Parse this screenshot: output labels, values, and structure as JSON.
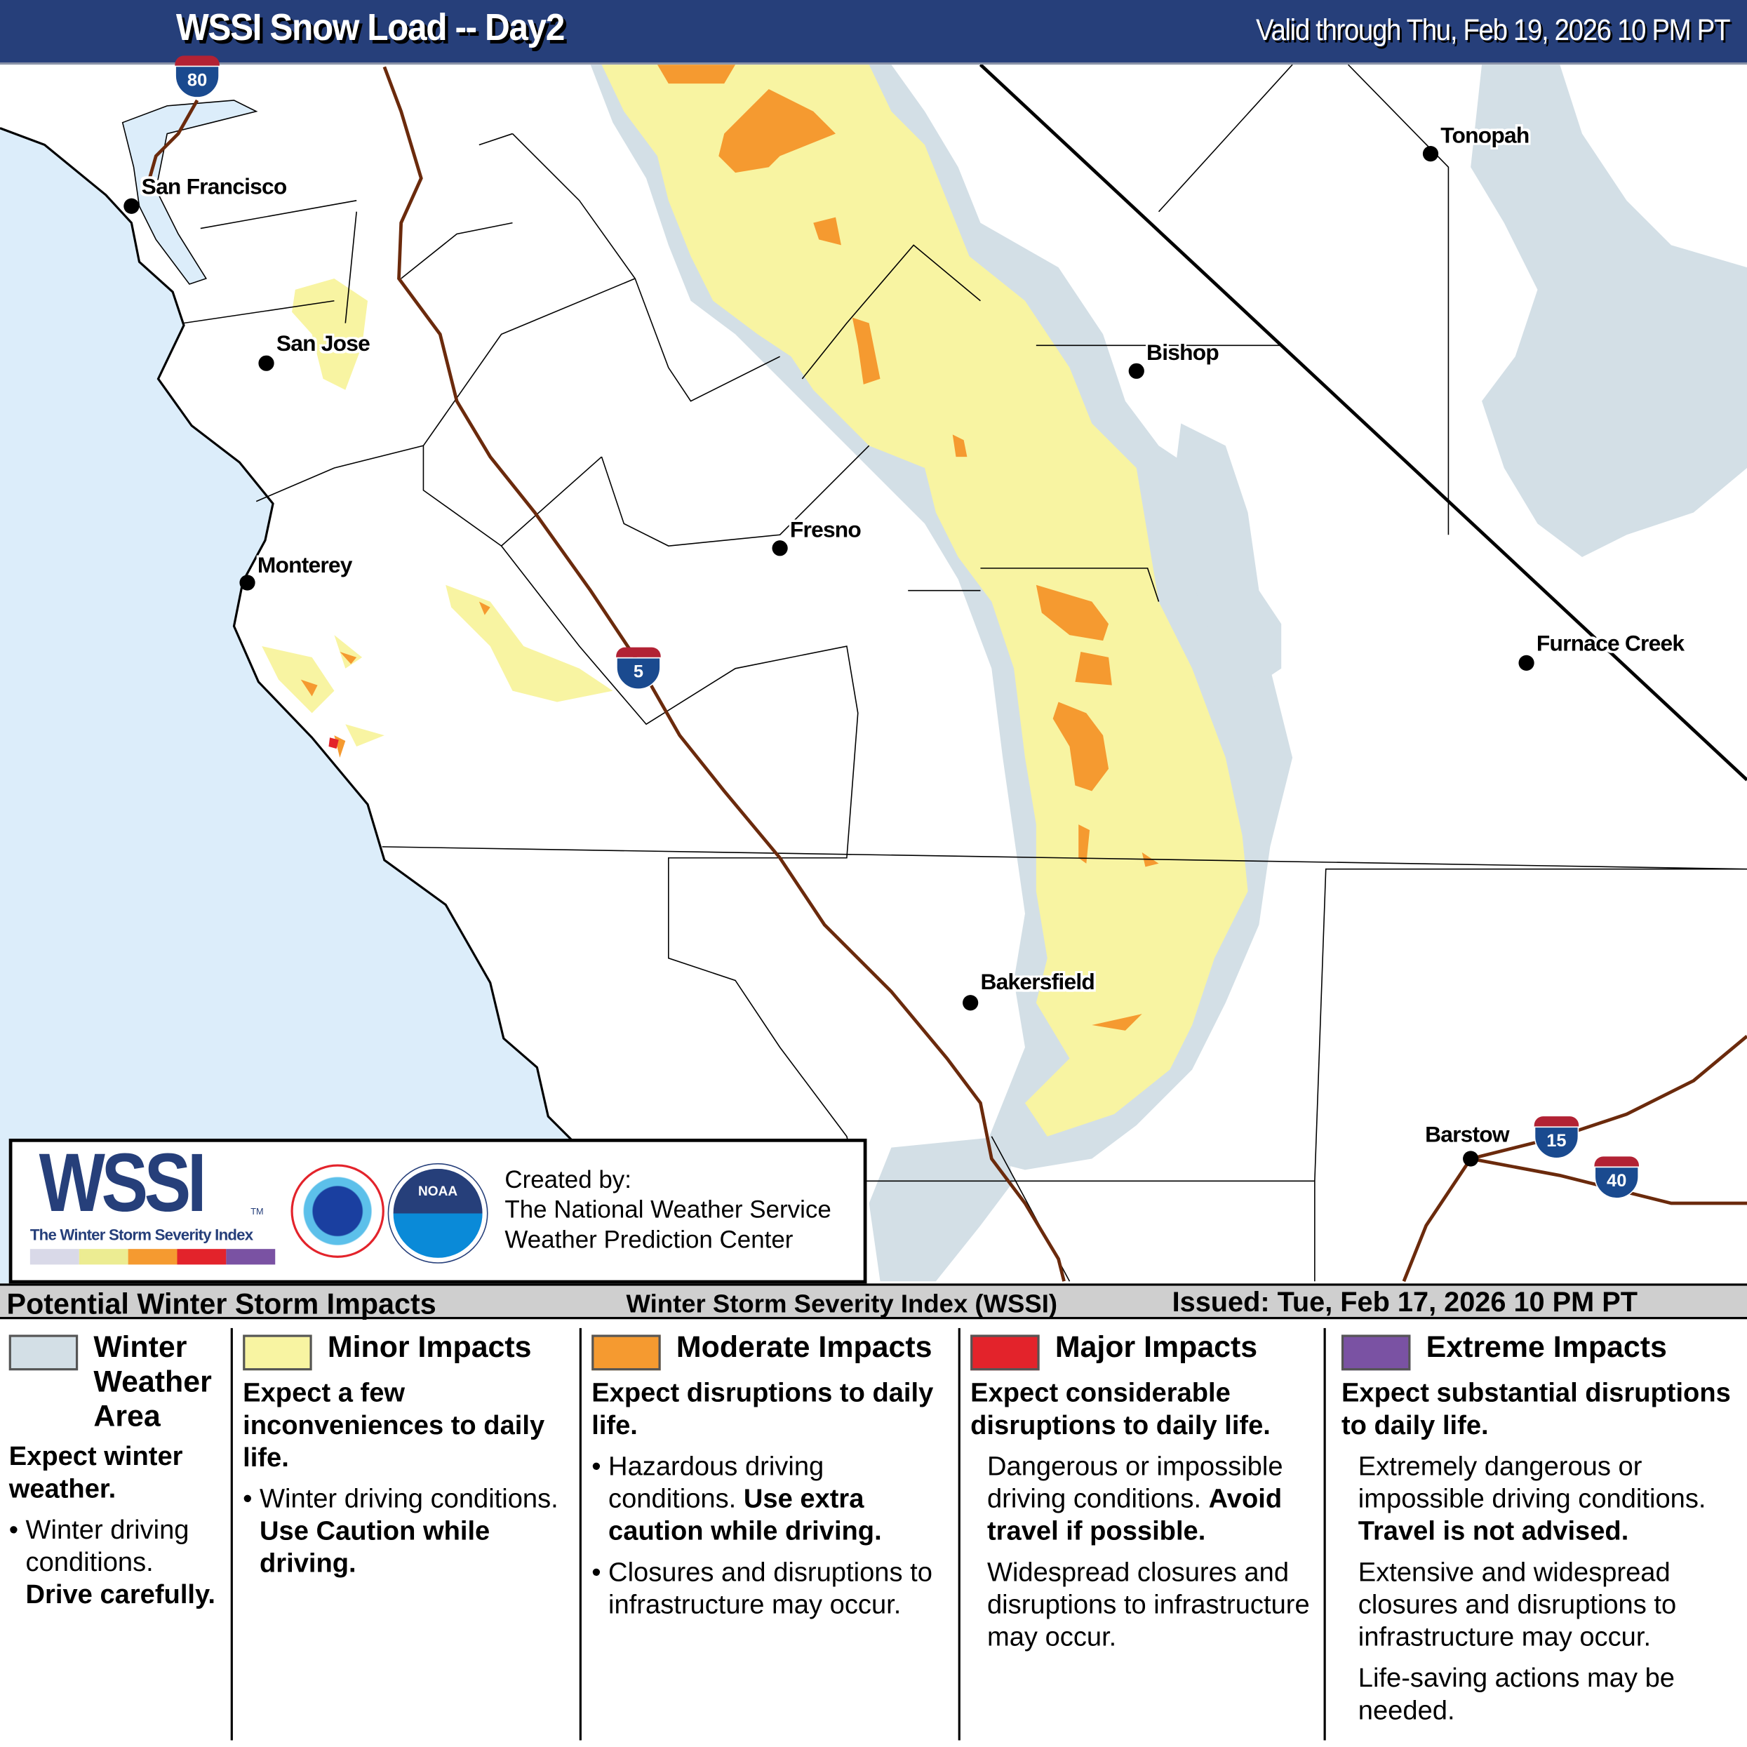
{
  "header": {
    "title": "WSSI Snow Load -- Day2",
    "valid": "Valid through Thu, Feb 19, 2026 10 PM PT"
  },
  "colors": {
    "header_bg": "#263f7a",
    "winter_weather": "#d3dfe6",
    "minor": "#f8f4a2",
    "moderate": "#f59a30",
    "major": "#e3232b",
    "extreme": "#7a52a3",
    "ocean": "#dcedfa",
    "interstate": "#6b2a0c"
  },
  "cities": [
    {
      "name": "San Francisco"
    },
    {
      "name": "San Jose"
    },
    {
      "name": "Monterey"
    },
    {
      "name": "Fresno"
    },
    {
      "name": "Bishop"
    },
    {
      "name": "Tonopah"
    },
    {
      "name": "Furnace Creek"
    },
    {
      "name": "Bakersfield"
    },
    {
      "name": "Barstow"
    }
  ],
  "interstates": [
    "80",
    "5",
    "15",
    "40"
  ],
  "logo": {
    "wssi": "WSSI",
    "tm": "TM",
    "tagline": "The Winter Storm Severity Index",
    "nws_seal": "NATIONAL WEATHER SERVICE",
    "noaa_seal": "NOAA",
    "created_by": "Created by:",
    "org1": "The National Weather Service",
    "org2": "Weather Prediction Center"
  },
  "legend_bar": {
    "left": "Potential Winter Storm Impacts",
    "center": "Winter Storm Severity Index (WSSI)",
    "issued": "Issued: Tue, Feb 17, 2026 10 PM PT"
  },
  "legend": [
    {
      "title": "Winter Weather Area",
      "summary": "Expect winter weather.",
      "b1": "Winter driving conditions. ",
      "b1_bold": "Drive carefully."
    },
    {
      "title": "Minor Impacts",
      "summary": "Expect a few inconveniences to daily life.",
      "b1": "Winter driving conditions. ",
      "b1_bold": "Use Caution while driving."
    },
    {
      "title": "Moderate Impacts",
      "summary": "Expect disruptions to daily life.",
      "b1": "Hazardous driving conditions. ",
      "b1_bold": "Use extra caution while driving.",
      "b2": "Closures and disruptions to infrastructure may occur."
    },
    {
      "title": "Major Impacts",
      "summary": "Expect considerable disruptions to daily life.",
      "b1": "Dangerous or impossible driving conditions. ",
      "b1_bold": "Avoid travel if possible.",
      "b2": "Widespread closures and disruptions to infrastructure may occur."
    },
    {
      "title": "Extreme Impacts",
      "summary": "Expect substantial disruptions to daily life.",
      "b1": "Extremely dangerous or impossible driving conditions. ",
      "b1_bold": "Travel is not advised.",
      "b2": "Extensive and widespread closures and disruptions to infrastructure may occur.",
      "b3": "Life-saving actions may be needed."
    }
  ]
}
